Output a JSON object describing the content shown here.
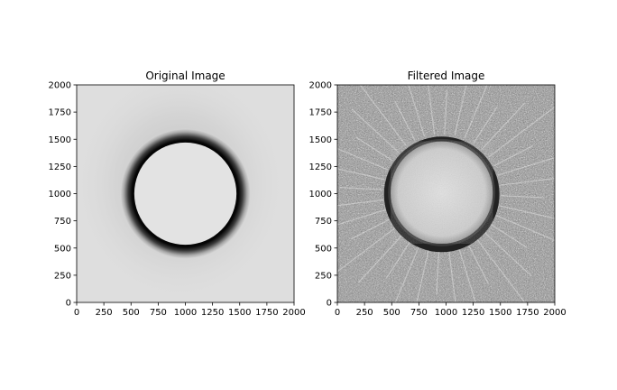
{
  "chart_data": [
    {
      "type": "heatmap",
      "title": "Original Image",
      "xlabel": "",
      "ylabel": "",
      "xlim": [
        0,
        2000
      ],
      "ylim": [
        0,
        2000
      ],
      "xticks": [
        0,
        250,
        500,
        750,
        1000,
        1250,
        1500,
        1750,
        2000
      ],
      "yticks": [
        0,
        250,
        500,
        750,
        1000,
        1250,
        1500,
        1750,
        2000
      ],
      "colormap": "gray_r",
      "disk": {
        "center_x": 1000,
        "center_y": 1000,
        "radius": 470
      },
      "grid": false
    },
    {
      "type": "heatmap",
      "title": "Filtered Image",
      "xlabel": "",
      "ylabel": "",
      "xlim": [
        0,
        2000
      ],
      "ylim": [
        0,
        2000
      ],
      "xticks": [
        0,
        250,
        500,
        750,
        1000,
        1250,
        1500,
        1750,
        2000
      ],
      "yticks": [
        0,
        250,
        500,
        750,
        1000,
        1250,
        1500,
        1750,
        2000
      ],
      "colormap": "gray_r",
      "disk": {
        "center_x": 960,
        "center_y": 1010,
        "radius": 470
      },
      "grid": false
    }
  ]
}
